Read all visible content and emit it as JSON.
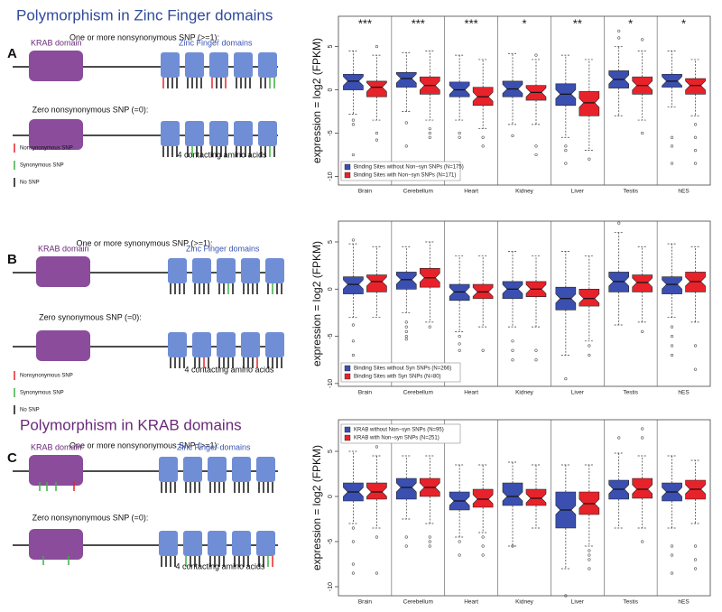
{
  "figure": {
    "title_zf": "Polymorphism in Zinc Finger domains",
    "title_krab": "Polymorphism in KRAB domains",
    "panels": [
      {
        "letter": "A",
        "row1": "One or more nonsynonymous SNP (>=1):",
        "row2": "Zero nonsynonymous SNP (=0):",
        "krab": "KRAB domain",
        "zf": "Zinc Finger domains",
        "contacts": "4 contacting amino acids",
        "legend": [
          "Nonsynonymous SNP",
          "Synonymous SNP",
          "No SNP"
        ]
      },
      {
        "letter": "B",
        "row1": "One or more synonymous SNP (>=1):",
        "row2": "Zero synonymous SNP (=0):",
        "krab": "KRAB domain",
        "zf": "Zinc Finger domains",
        "contacts": "4 contacting amino acids",
        "legend": [
          "Nonsynonymous SNP",
          "Synonymous SNP",
          "No SNP"
        ]
      },
      {
        "letter": "C",
        "row1": "One or more nonsynonymous SNP (>=1):",
        "row2": "Zero nonsynonymous SNP (=0):",
        "krab": "KRAB domain",
        "zf": "Zinc Finger domains",
        "contacts": "4 contacting amino acids"
      }
    ]
  },
  "chart_data": [
    {
      "type": "boxplot",
      "ylabel": "expression = log2 (FPKM)",
      "categories": [
        "Brain",
        "Cerebellum",
        "Heart",
        "Kidney",
        "Liver",
        "Testis",
        "hES"
      ],
      "annotations": [
        "***",
        "***",
        "***",
        "*",
        "**",
        "*",
        "*"
      ],
      "legend": "lower left",
      "ylim": [
        -11,
        8.5
      ],
      "yticks": [
        -10,
        -5,
        0,
        5
      ],
      "series": [
        {
          "name": "Binding Sites without Non−syn SNPs (N=175)",
          "color": "#3b4fb0",
          "whisker_low": [
            -2.8,
            -2.5,
            -3.5,
            -4,
            -5.5,
            -3,
            -2
          ],
          "q1": [
            0,
            0.3,
            -0.8,
            -0.8,
            -1.8,
            0.2,
            0.3
          ],
          "median": [
            1,
            1.3,
            0,
            0.1,
            -0.5,
            1.2,
            1
          ],
          "q3": [
            1.8,
            2,
            0.9,
            1,
            0.7,
            2.2,
            1.8
          ],
          "whisker_high": [
            4.5,
            4.3,
            4,
            4.2,
            4,
            5,
            4.5
          ],
          "outliers": [
            [
              -3.5,
              -4,
              -7.5
            ],
            [
              -3.8,
              -6.5
            ],
            [
              -5,
              -5.5
            ],
            [
              -5.3
            ],
            [
              -6.5,
              -7,
              -8.5
            ],
            [
              6,
              6.8
            ],
            [
              -5.5,
              -6.5,
              -8.5
            ]
          ]
        },
        {
          "name": "Binding Sites with Non−syn SNPs (N=171)",
          "color": "#e8222a",
          "whisker_low": [
            -3.5,
            -3.5,
            -4.5,
            -4,
            -7,
            -3.5,
            -3
          ],
          "q1": [
            -0.8,
            -0.5,
            -1.8,
            -1.2,
            -3,
            -0.5,
            -0.5
          ],
          "median": [
            0.3,
            0.5,
            -0.8,
            -0.3,
            -1.5,
            0.5,
            0.5
          ],
          "q3": [
            1,
            1.5,
            0.3,
            0.5,
            -0.2,
            1.5,
            1.3
          ],
          "whisker_high": [
            4,
            4.5,
            3.5,
            3.5,
            3.5,
            4.5,
            3.5
          ],
          "outliers": [
            [
              -5,
              -5.8,
              5
            ],
            [
              -4.5,
              -5,
              -5.5
            ],
            [
              -5.5,
              -6.5
            ],
            [
              -6.5,
              -7.5,
              4
            ],
            [
              -8
            ],
            [
              -5,
              5.8
            ],
            [
              -4,
              -5.5,
              -7,
              -8.5
            ]
          ]
        }
      ]
    },
    {
      "type": "boxplot",
      "ylabel": "expression = log2 (FPKM)",
      "categories": [
        "Brain",
        "Cerebellum",
        "Heart",
        "Kidney",
        "Liver",
        "Testis",
        "hES"
      ],
      "legend": "lower left",
      "ylim": [
        -10.3,
        7.2
      ],
      "yticks": [
        -10,
        -5,
        0,
        5
      ],
      "series": [
        {
          "name": "Binding Sites without Syn SNPs (N=266)",
          "color": "#3b4fb0",
          "whisker_low": [
            -3,
            -2.5,
            -4.5,
            -4,
            -7,
            -3.8,
            -3
          ],
          "q1": [
            -0.5,
            0,
            -1.2,
            -1,
            -2.2,
            -0.3,
            -0.5
          ],
          "median": [
            0.5,
            1,
            -0.3,
            0,
            -1,
            0.8,
            0.5
          ],
          "q3": [
            1.3,
            1.8,
            0.5,
            0.8,
            0.2,
            1.8,
            1.3
          ],
          "whisker_high": [
            4.8,
            4.5,
            3.5,
            4,
            4,
            6,
            4.8
          ],
          "outliers": [
            [
              -3.8,
              -5.5,
              -7,
              5.2
            ],
            [
              -3.5,
              -4,
              -4.5,
              -5,
              -5.3
            ],
            [
              -5,
              -5.8,
              -6.5
            ],
            [
              -5.5,
              -6.5,
              -7.5
            ],
            [
              -9.5
            ],
            [
              7
            ],
            [
              -4,
              -5,
              -6,
              -7
            ]
          ]
        },
        {
          "name": "Binding Sites with Syn SNPs (N=80)",
          "color": "#e8222a",
          "whisker_low": [
            -3,
            -3.5,
            -4,
            -4,
            -5.5,
            -3.5,
            -3.5
          ],
          "q1": [
            -0.3,
            0.2,
            -1,
            -0.8,
            -1.8,
            -0.3,
            -0.3
          ],
          "median": [
            0.8,
            1.2,
            -0.3,
            0,
            -1,
            0.7,
            0.8
          ],
          "q3": [
            1.5,
            2.2,
            0.5,
            0.8,
            0,
            1.5,
            1.8
          ],
          "whisker_high": [
            4.5,
            5,
            3.5,
            3.5,
            3.5,
            4.5,
            4.5
          ],
          "outliers": [
            [],
            [
              -4
            ],
            [
              -6.5
            ],
            [
              -6.5,
              -7.5
            ],
            [
              -6,
              -7
            ],
            [
              -4.5
            ],
            [
              -6,
              -8.5
            ]
          ]
        }
      ]
    },
    {
      "type": "boxplot",
      "ylabel": "expression = log2 (FPKM)",
      "categories": [
        "Brain",
        "Cerebellum",
        "Heart",
        "Kidney",
        "Liver",
        "Testis",
        "hES"
      ],
      "legend": "upper left",
      "ylim": [
        -11,
        8.5
      ],
      "yticks": [
        -10,
        -5,
        0,
        5
      ],
      "series": [
        {
          "name": "KRAB without Non−syn SNPs (N=95)",
          "color": "#3b4fb0",
          "whisker_low": [
            -3,
            -2.5,
            -4.5,
            -5.5,
            -8,
            -3.5,
            -3.5
          ],
          "q1": [
            -0.5,
            -0.3,
            -1.5,
            -1,
            -3.5,
            -0.3,
            -0.5
          ],
          "median": [
            0.5,
            1,
            -0.5,
            0,
            -1.5,
            0.8,
            0.5
          ],
          "q3": [
            1.5,
            2,
            0.5,
            1.5,
            0.5,
            1.8,
            1.5
          ],
          "whisker_high": [
            5,
            4.5,
            3.5,
            3.8,
            3.5,
            4.8,
            4.5
          ],
          "outliers": [
            [
              -3.5,
              -5,
              -7.5,
              -8.5
            ],
            [
              -4.5,
              -5.5
            ],
            [
              -5,
              -6.5
            ],
            [
              -5.5
            ],
            [
              -11
            ],
            [
              6.5
            ],
            [
              -5.5,
              -6.5,
              -8.5
            ]
          ]
        },
        {
          "name": "KRAB with Non−syn SNPs (N=251)",
          "color": "#e8222a",
          "whisker_low": [
            -3.5,
            -3,
            -4,
            -3.5,
            -5.5,
            -3.5,
            -3
          ],
          "q1": [
            -0.3,
            0,
            -1.2,
            -1,
            -2,
            -0.2,
            -0.3
          ],
          "median": [
            0.5,
            1,
            -0.3,
            -0.2,
            -0.8,
            0.8,
            0.8
          ],
          "q3": [
            1.5,
            2,
            0.8,
            0.8,
            0.5,
            2,
            1.8
          ],
          "whisker_high": [
            4.5,
            4.5,
            3.5,
            3.5,
            3.5,
            4.5,
            4
          ],
          "outliers": [
            [
              -4.5,
              -8.5,
              5.5
            ],
            [
              -4.5,
              -5,
              -5.5
            ],
            [
              -4.5,
              -5.5,
              -6.5
            ],
            [],
            [
              -6,
              -6.5,
              -7,
              -8
            ],
            [
              -5,
              6.5,
              7.5
            ],
            [
              -5.5,
              -7,
              -8
            ]
          ]
        }
      ]
    }
  ]
}
